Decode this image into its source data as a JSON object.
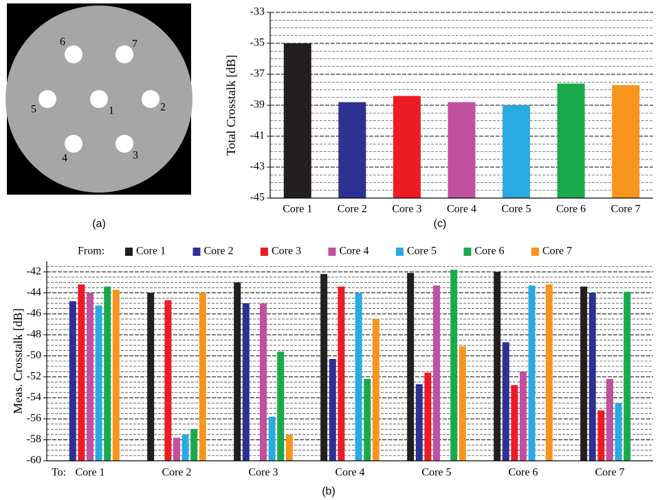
{
  "panel_a": {
    "caption": "(a)",
    "core_labels": [
      "1",
      "2",
      "3",
      "4",
      "5",
      "6",
      "7"
    ]
  },
  "chart_data": [
    {
      "type": "bar",
      "caption": "(c)",
      "y_label": "Total Crosstalk [dB]",
      "categories": [
        "Core 1",
        "Core 2",
        "Core 3",
        "Core 4",
        "Core 5",
        "Core 6",
        "Core 7"
      ],
      "values": [
        -35.0,
        -38.8,
        -38.4,
        -38.8,
        -39.0,
        -37.6,
        -37.7
      ],
      "colors": [
        "#231f20",
        "#2e3192",
        "#ed1c24",
        "#c150a0",
        "#29abe2",
        "#1aaa4b",
        "#f7941d"
      ],
      "ylim": [
        -45,
        -33
      ],
      "yticks": [
        -45,
        -43,
        -41,
        -39,
        -37,
        -35,
        -33
      ],
      "grid": true
    },
    {
      "type": "grouped_bar",
      "caption": "(b)",
      "y_label": "Meas. Crosstalk [dB]",
      "legend_title": "From:",
      "x_prefix": "To:",
      "categories": [
        "Core 1",
        "Core 2",
        "Core 3",
        "Core 4",
        "Core 5",
        "Core 6",
        "Core 7"
      ],
      "series": [
        {
          "name": "Core 1",
          "color": "#231f20",
          "values": [
            null,
            -44.0,
            -43.0,
            -42.2,
            -42.1,
            -42.0,
            -43.4
          ]
        },
        {
          "name": "Core 2",
          "color": "#2e3192",
          "values": [
            -44.8,
            null,
            -45.0,
            -50.3,
            -52.7,
            -48.7,
            -44.0
          ]
        },
        {
          "name": "Core 3",
          "color": "#ed1c24",
          "values": [
            -43.2,
            -44.7,
            null,
            -43.4,
            -51.6,
            -52.8,
            -55.2
          ]
        },
        {
          "name": "Core 4",
          "color": "#c150a0",
          "values": [
            -44.0,
            -57.8,
            -45.0,
            null,
            -43.3,
            -51.5,
            -52.2
          ]
        },
        {
          "name": "Core 5",
          "color": "#29abe2",
          "values": [
            -45.2,
            -57.5,
            -55.8,
            -44.0,
            null,
            -43.3,
            -54.5
          ]
        },
        {
          "name": "Core 6",
          "color": "#1aaa4b",
          "values": [
            -43.4,
            -57.0,
            -49.6,
            -52.2,
            -41.8,
            null,
            -43.9
          ]
        },
        {
          "name": "Core 7",
          "color": "#f7941d",
          "values": [
            -43.7,
            -44.0,
            -57.5,
            -46.5,
            -49.1,
            -43.2,
            null
          ]
        }
      ],
      "ylim": [
        -60,
        -41
      ],
      "yticks": [
        -60,
        -58,
        -56,
        -54,
        -52,
        -50,
        -48,
        -46,
        -44,
        -42
      ],
      "grid": true
    }
  ]
}
